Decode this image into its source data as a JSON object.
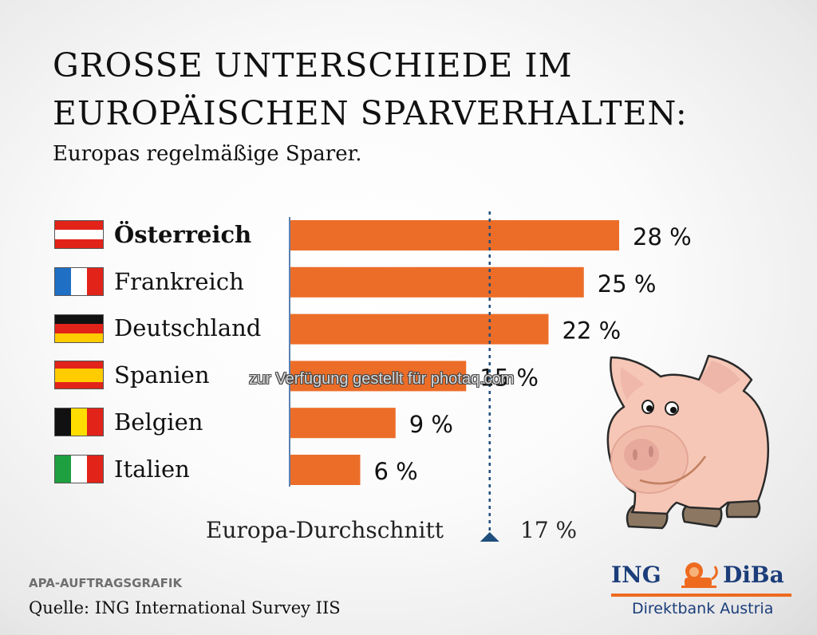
{
  "header": {
    "title_line1": "GROSSE UNTERSCHIEDE IM",
    "title_line2": "EUROPÄISCHEN SPARVERHALTEN:",
    "subtitle": "Europas regelmäßige Sparer."
  },
  "chart_data": {
    "type": "bar",
    "orientation": "horizontal",
    "title": "GROSSE UNTERSCHIEDE IM EUROPÄISCHEN SPARVERHALTEN:",
    "subtitle": "Europas regelmäßige Sparer.",
    "xlabel": "",
    "ylabel": "",
    "unit": "%",
    "categories": [
      "Österreich",
      "Frankreich",
      "Deutschland",
      "Spanien",
      "Belgien",
      "Italien"
    ],
    "values": [
      28,
      25,
      22,
      15,
      9,
      6
    ],
    "value_labels": [
      "28 %",
      "25 %",
      "22 %",
      "15 %",
      "9 %",
      "6 %"
    ],
    "highlighted_category": "Österreich",
    "xlim": [
      0,
      28
    ],
    "grid": false,
    "bar_color": "#ec6d28",
    "axis_color": "#5b7fb0",
    "reference_line": {
      "label": "Europa-Durchschnitt",
      "value": 17,
      "value_label": "17 %",
      "color": "#1f4e7c",
      "style": "dotted"
    }
  },
  "flags": [
    {
      "country": "Österreich",
      "layout": "horizontal",
      "colors": [
        "#e2231a",
        "#ffffff",
        "#e2231a"
      ]
    },
    {
      "country": "Frankreich",
      "layout": "vertical",
      "colors": [
        "#1f6fc5",
        "#ffffff",
        "#e2231a"
      ]
    },
    {
      "country": "Deutschland",
      "layout": "horizontal",
      "colors": [
        "#111111",
        "#e2231a",
        "#ffcc00"
      ]
    },
    {
      "country": "Spanien",
      "layout": "horizontal-spain",
      "colors": [
        "#e2231a",
        "#ffcc00",
        "#e2231a"
      ]
    },
    {
      "country": "Belgien",
      "layout": "vertical",
      "colors": [
        "#111111",
        "#ffdd00",
        "#e2231a"
      ]
    },
    {
      "country": "Italien",
      "layout": "vertical",
      "colors": [
        "#1ea040",
        "#ffffff",
        "#e2231a"
      ]
    }
  ],
  "footer": {
    "agency": "APA-AUFTRAGSGRAFIK",
    "source": "Quelle: ING International Survey IIS"
  },
  "logo": {
    "left": "ING",
    "right": "DiBa",
    "subline": "Direktbank Austria",
    "brand_blue": "#1b3d7a",
    "brand_orange": "#ee6a1f"
  },
  "watermark": "zur Verfügung gestellt für photaq.com"
}
